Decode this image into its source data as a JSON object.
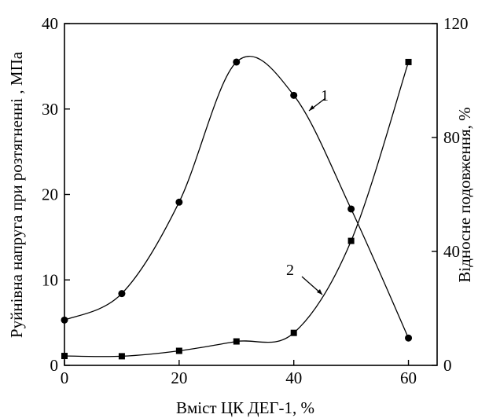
{
  "chart_data": {
    "type": "line",
    "title": "",
    "xlabel": "Вміст ЦК ДЕГ-1, %",
    "ylabel": "Руйнівна напруга при розтягненні , МПа",
    "y2label": "Відносне подовження, %",
    "xlim": [
      0,
      65
    ],
    "ylim": [
      0,
      40
    ],
    "y2lim": [
      0,
      120
    ],
    "xticks": [
      0,
      20,
      40,
      60
    ],
    "yticks": [
      0,
      10,
      20,
      30,
      40
    ],
    "y2ticks": [
      0,
      40,
      80,
      120
    ],
    "grid": false,
    "legend": "none",
    "series": [
      {
        "name": "1",
        "axis": "left",
        "marker": "circle",
        "x": [
          0,
          10,
          20,
          30,
          40,
          50,
          60
        ],
        "y": [
          5.3,
          8.4,
          19.1,
          35.5,
          31.6,
          18.3,
          3.2
        ]
      },
      {
        "name": "2",
        "axis": "right",
        "marker": "square",
        "x": [
          0,
          10,
          20,
          30,
          40,
          50,
          60
        ],
        "y": [
          3.3,
          3.2,
          5.1,
          8.4,
          11.4,
          43.7,
          106.5
        ]
      }
    ]
  }
}
